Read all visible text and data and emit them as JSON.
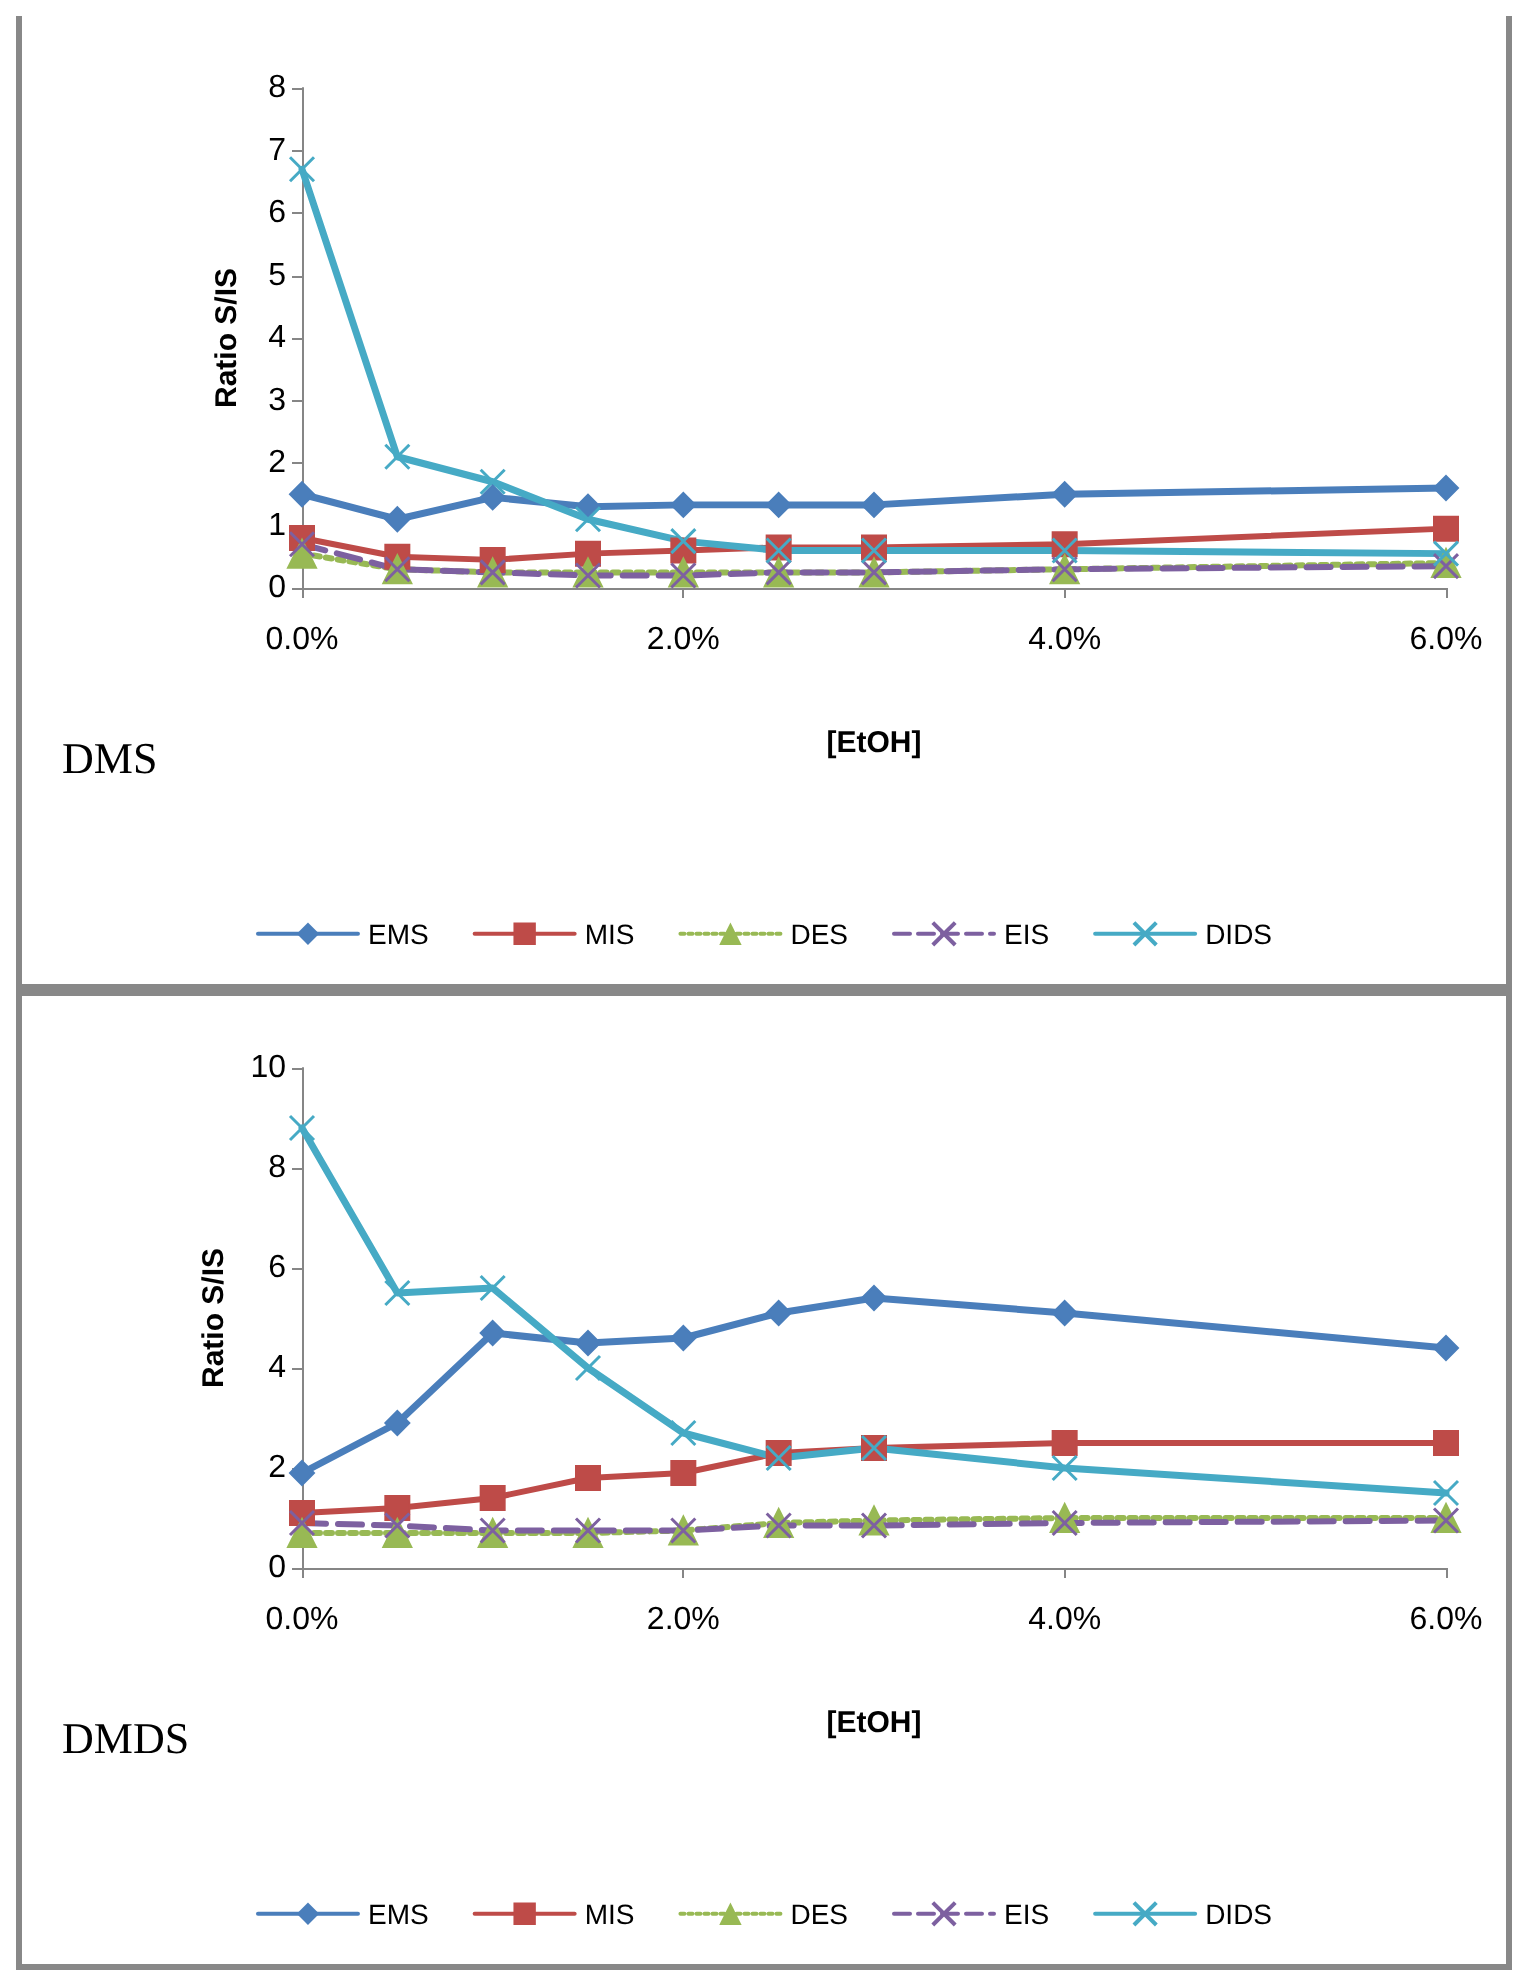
{
  "chart_data": [
    {
      "type": "line",
      "xlabel": "[EtOH]",
      "ylabel": "Ratio S/IS",
      "annotations": [
        "DMS"
      ],
      "x": [
        0,
        0.5,
        1,
        1.5,
        2,
        2.5,
        3,
        4,
        6
      ],
      "xlim": [
        0,
        6
      ],
      "xticks": [
        {
          "value": 0,
          "label": "0.0%"
        },
        {
          "value": 2,
          "label": "2.0%"
        },
        {
          "value": 4,
          "label": "4.0%"
        },
        {
          "value": 6,
          "label": "6.0%"
        }
      ],
      "ylim": [
        0,
        8
      ],
      "yticks": [
        0,
        1,
        2,
        3,
        4,
        5,
        6,
        7,
        8
      ],
      "grid": false,
      "legend": "bottom",
      "series": [
        {
          "name": "EMS",
          "color": "#4a7ebb",
          "marker": "diamond",
          "line_style": "solid",
          "values": [
            1.5,
            1.1,
            1.45,
            1.3,
            1.33,
            1.33,
            1.33,
            1.5,
            1.6
          ]
        },
        {
          "name": "MIS",
          "color": "#be4b48",
          "marker": "square",
          "line_style": "solid",
          "values": [
            0.8,
            0.5,
            0.45,
            0.55,
            0.6,
            0.65,
            0.65,
            0.7,
            0.95
          ]
        },
        {
          "name": "DES",
          "color": "#98b954",
          "marker": "triangle",
          "line_style": "dotted",
          "values": [
            0.55,
            0.3,
            0.25,
            0.25,
            0.25,
            0.25,
            0.25,
            0.3,
            0.4
          ]
        },
        {
          "name": "EIS",
          "color": "#7d60a0",
          "marker": "cross",
          "line_style": "dashed",
          "values": [
            0.7,
            0.3,
            0.25,
            0.2,
            0.2,
            0.25,
            0.25,
            0.3,
            0.35
          ]
        },
        {
          "name": "DIDS",
          "color": "#46aac5",
          "marker": "cross",
          "line_style": "solid",
          "values": [
            6.7,
            2.1,
            1.7,
            1.1,
            0.75,
            0.6,
            0.6,
            0.6,
            0.55
          ]
        }
      ]
    },
    {
      "type": "line",
      "xlabel": "[EtOH]",
      "ylabel": "Ratio S/IS",
      "annotations": [
        "DMDS"
      ],
      "x": [
        0,
        0.5,
        1,
        1.5,
        2,
        2.5,
        3,
        4,
        6
      ],
      "xlim": [
        0,
        6
      ],
      "xticks": [
        {
          "value": 0,
          "label": "0.0%"
        },
        {
          "value": 2,
          "label": "2.0%"
        },
        {
          "value": 4,
          "label": "4.0%"
        },
        {
          "value": 6,
          "label": "6.0%"
        }
      ],
      "ylim": [
        0,
        10
      ],
      "yticks": [
        0,
        2,
        4,
        6,
        8,
        10
      ],
      "grid": false,
      "legend": "bottom",
      "series": [
        {
          "name": "EMS",
          "color": "#4a7ebb",
          "marker": "diamond",
          "line_style": "solid",
          "values": [
            1.9,
            2.9,
            4.7,
            4.5,
            4.6,
            5.1,
            5.4,
            5.1,
            4.4
          ]
        },
        {
          "name": "MIS",
          "color": "#be4b48",
          "marker": "square",
          "line_style": "solid",
          "values": [
            1.1,
            1.2,
            1.4,
            1.8,
            1.9,
            2.3,
            2.4,
            2.5,
            2.5
          ]
        },
        {
          "name": "DES",
          "color": "#98b954",
          "marker": "triangle",
          "line_style": "dotted",
          "values": [
            0.7,
            0.7,
            0.7,
            0.7,
            0.75,
            0.9,
            0.95,
            1.0,
            1.0
          ]
        },
        {
          "name": "EIS",
          "color": "#7d60a0",
          "marker": "cross",
          "line_style": "dashed",
          "values": [
            0.9,
            0.85,
            0.75,
            0.75,
            0.75,
            0.85,
            0.85,
            0.9,
            0.95
          ]
        },
        {
          "name": "DIDS",
          "color": "#46aac5",
          "marker": "cross",
          "line_style": "solid",
          "values": [
            8.8,
            5.5,
            5.6,
            4.0,
            2.7,
            2.2,
            2.4,
            2.0,
            1.5
          ]
        }
      ]
    }
  ]
}
